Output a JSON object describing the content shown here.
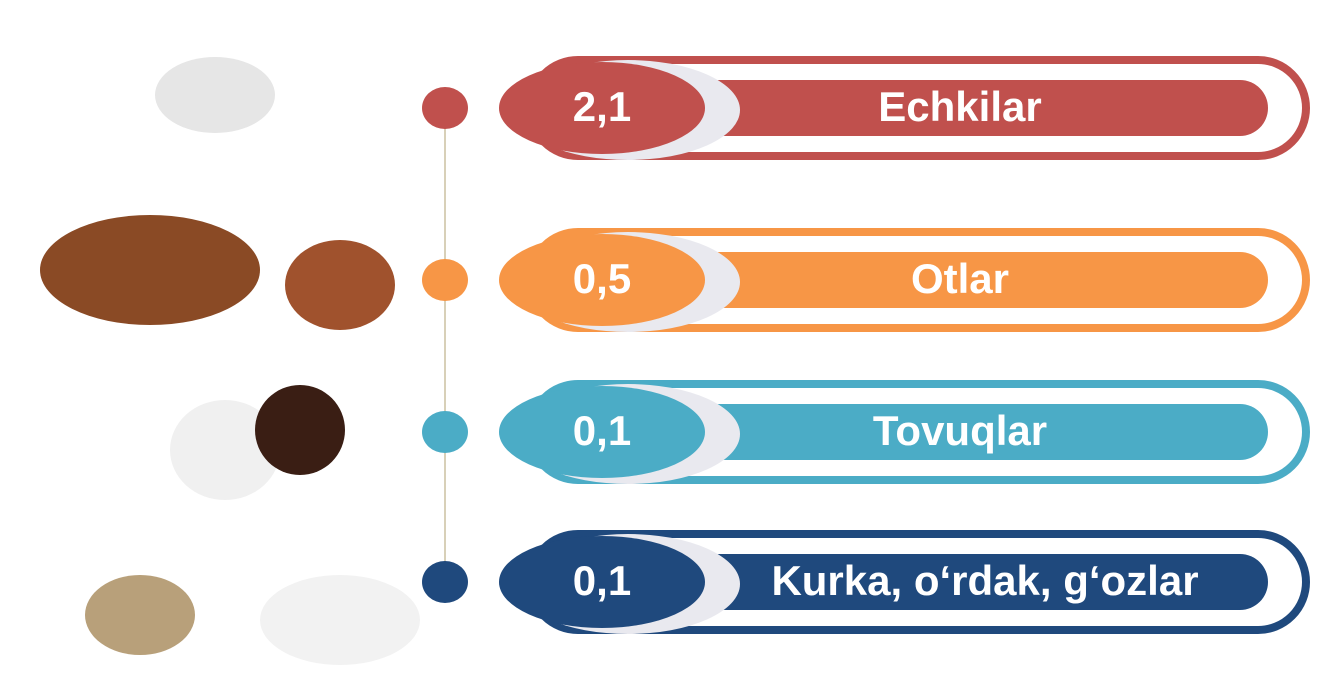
{
  "items": [
    {
      "value": "2,1",
      "label": "Echkilar",
      "color": "#c0504d"
    },
    {
      "value": "0,5",
      "label": "Otlar",
      "color": "#f79646"
    },
    {
      "value": "0,1",
      "label": "Tovuqlar",
      "color": "#4bacc6"
    },
    {
      "value": "0,1",
      "label": "Kurka, o‘rdak, g‘ozlar",
      "color": "#1f497d"
    }
  ]
}
